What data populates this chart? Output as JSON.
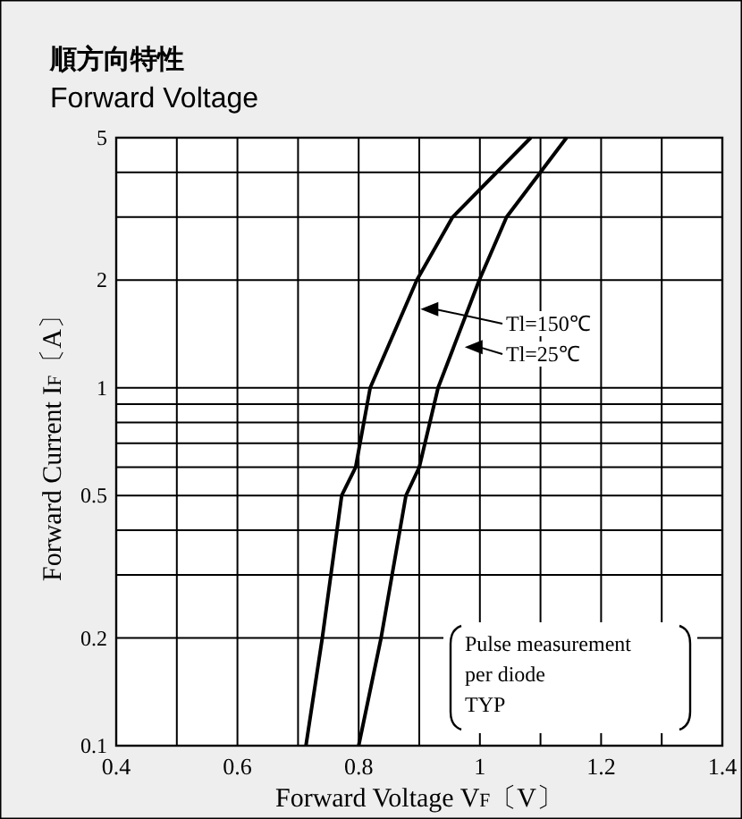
{
  "chart_data": {
    "type": "line",
    "title": "順方向特性",
    "subtitle": "Forward Voltage",
    "xlabel": "Forward Voltage V$_{F}$〔V〕",
    "ylabel": "Forward Current I$_{F}$〔A〕",
    "log": "y",
    "grid": true,
    "legend": "right",
    "xlim": [
      0.4,
      1.4
    ],
    "xticks": [
      0.4,
      {
        "value": 0.5,
        "label": null
      },
      0.6,
      {
        "value": 0.7,
        "label": null
      },
      0.8,
      {
        "value": 0.9,
        "label": null
      },
      1,
      {
        "value": 1.1,
        "label": null
      },
      1.2,
      {
        "value": 1.3,
        "label": null
      },
      1.4
    ],
    "ylim": [
      0.1,
      5
    ],
    "yticks": [
      0.1,
      0.2,
      {
        "value": 0.3,
        "label": null
      },
      {
        "value": 0.4,
        "label": null
      },
      0.5,
      {
        "value": 0.6,
        "label": null
      },
      {
        "value": 0.7,
        "label": null
      },
      {
        "value": 0.8,
        "label": null
      },
      {
        "value": 0.9,
        "label": null
      },
      1,
      2,
      {
        "value": 3,
        "label": null
      },
      {
        "value": 4,
        "label": null
      },
      5
    ],
    "series": [
      {
        "name": "Tl=150℃",
        "color": "#000000",
        "x": [
          0.713,
          0.74,
          0.772,
          0.795,
          0.819,
          0.896,
          0.955,
          1.084
        ],
        "values": [
          0.1,
          0.2,
          0.5,
          0.6,
          1,
          2,
          3,
          5
        ]
      },
      {
        "name": "Tl=25℃",
        "color": "#000000",
        "x": [
          0.8,
          0.837,
          0.878,
          0.9,
          0.931,
          0.999,
          1.044,
          1.143
        ],
        "values": [
          0.1,
          0.2,
          0.5,
          0.6,
          1,
          2,
          3,
          5
        ]
      }
    ],
    "annotations": [
      "Pulse measurement\nper diode\nTYP"
    ]
  }
}
